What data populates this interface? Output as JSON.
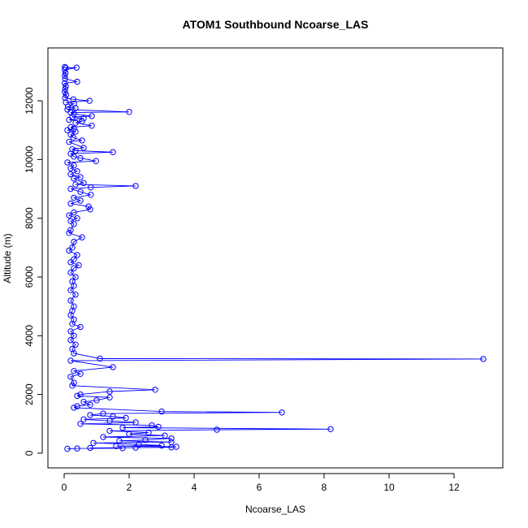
{
  "chart_data": {
    "type": "scatter",
    "title": "ATOM1 Southbound Ncoarse_LAS",
    "xlabel": "Ncoarse_LAS",
    "ylabel": "Altitude (m)",
    "xlim": [
      -0.5,
      13.5
    ],
    "ylim": [
      -500,
      13800
    ],
    "xticks": [
      0,
      2,
      4,
      6,
      8,
      10,
      12
    ],
    "yticks": [
      0,
      2000,
      4000,
      6000,
      8000,
      10000,
      12000
    ],
    "grid": false,
    "legend": "none",
    "style": "points connected by lines, open circles",
    "colors": {
      "series": "#0000ff",
      "axes": "#000000"
    },
    "series": [
      {
        "points": [
          [
            0.02,
            13150
          ],
          [
            0.05,
            13120
          ],
          [
            0.38,
            13130
          ],
          [
            0.02,
            13050
          ],
          [
            0.04,
            12950
          ],
          [
            0.02,
            12850
          ],
          [
            0.03,
            12750
          ],
          [
            0.4,
            12650
          ],
          [
            0.02,
            12600
          ],
          [
            0.05,
            12500
          ],
          [
            0.03,
            12400
          ],
          [
            0.02,
            12300
          ],
          [
            0.06,
            12200
          ],
          [
            0.03,
            12100
          ],
          [
            0.28,
            12050
          ],
          [
            0.78,
            12000
          ],
          [
            0.05,
            11950
          ],
          [
            0.3,
            11900
          ],
          [
            0.12,
            11800
          ],
          [
            0.35,
            11750
          ],
          [
            0.1,
            11700
          ],
          [
            2.0,
            11620
          ],
          [
            0.2,
            11600
          ],
          [
            0.3,
            11550
          ],
          [
            0.85,
            11480
          ],
          [
            0.25,
            11450
          ],
          [
            0.6,
            11400
          ],
          [
            0.15,
            11350
          ],
          [
            0.55,
            11300
          ],
          [
            0.35,
            11250
          ],
          [
            0.85,
            11150
          ],
          [
            0.2,
            11100
          ],
          [
            0.3,
            11050
          ],
          [
            0.1,
            11000
          ],
          [
            0.35,
            10950
          ],
          [
            0.2,
            10850
          ],
          [
            0.28,
            10750
          ],
          [
            0.55,
            10650
          ],
          [
            0.15,
            10600
          ],
          [
            0.6,
            10400
          ],
          [
            0.25,
            10350
          ],
          [
            0.35,
            10300
          ],
          [
            1.5,
            10250
          ],
          [
            0.2,
            10200
          ],
          [
            0.3,
            10100
          ],
          [
            0.5,
            10050
          ],
          [
            0.98,
            9950
          ],
          [
            0.1,
            9900
          ],
          [
            0.3,
            9800
          ],
          [
            0.2,
            9700
          ],
          [
            0.4,
            9600
          ],
          [
            0.2,
            9500
          ],
          [
            0.5,
            9400
          ],
          [
            0.3,
            9350
          ],
          [
            0.6,
            9200
          ],
          [
            0.35,
            9150
          ],
          [
            2.2,
            9100
          ],
          [
            0.82,
            9050
          ],
          [
            0.2,
            9000
          ],
          [
            0.5,
            8900
          ],
          [
            0.82,
            8800
          ],
          [
            0.3,
            8700
          ],
          [
            0.5,
            8600
          ],
          [
            0.2,
            8500
          ],
          [
            0.75,
            8400
          ],
          [
            0.8,
            8300
          ],
          [
            0.3,
            8200
          ],
          [
            0.15,
            8100
          ],
          [
            0.4,
            8000
          ],
          [
            0.2,
            7900
          ],
          [
            0.3,
            7800
          ],
          [
            0.2,
            7600
          ],
          [
            0.15,
            7500
          ],
          [
            0.55,
            7350
          ],
          [
            0.3,
            7200
          ],
          [
            0.25,
            7000
          ],
          [
            0.15,
            6900
          ],
          [
            0.4,
            6750
          ],
          [
            0.3,
            6600
          ],
          [
            0.2,
            6500
          ],
          [
            0.45,
            6400
          ],
          [
            0.3,
            6300
          ],
          [
            0.2,
            6150
          ],
          [
            0.35,
            6000
          ],
          [
            0.25,
            5850
          ],
          [
            0.3,
            5700
          ],
          [
            0.2,
            5550
          ],
          [
            0.35,
            5400
          ],
          [
            0.2,
            5200
          ],
          [
            0.3,
            5000
          ],
          [
            0.25,
            4850
          ],
          [
            0.2,
            4700
          ],
          [
            0.3,
            4550
          ],
          [
            0.25,
            4400
          ],
          [
            0.5,
            4300
          ],
          [
            0.2,
            4150
          ],
          [
            0.3,
            4000
          ],
          [
            0.2,
            3850
          ],
          [
            0.35,
            3700
          ],
          [
            0.25,
            3550
          ],
          [
            0.3,
            3400
          ],
          [
            1.1,
            3220
          ],
          [
            12.9,
            3210
          ],
          [
            0.2,
            3150
          ],
          [
            1.5,
            2930
          ],
          [
            0.3,
            2800
          ],
          [
            0.5,
            2700
          ],
          [
            0.2,
            2600
          ],
          [
            0.3,
            2400
          ],
          [
            0.25,
            2300
          ],
          [
            2.8,
            2160
          ],
          [
            1.4,
            2100
          ],
          [
            0.5,
            2000
          ],
          [
            0.4,
            1950
          ],
          [
            1.4,
            1900
          ],
          [
            1.0,
            1800
          ],
          [
            0.6,
            1750
          ],
          [
            0.8,
            1650
          ],
          [
            0.4,
            1600
          ],
          [
            0.3,
            1550
          ],
          [
            3.0,
            1420
          ],
          [
            6.7,
            1390
          ],
          [
            1.2,
            1350
          ],
          [
            0.8,
            1300
          ],
          [
            1.5,
            1250
          ],
          [
            1.9,
            1200
          ],
          [
            0.6,
            1150
          ],
          [
            1.4,
            1100
          ],
          [
            2.2,
            1050
          ],
          [
            0.5,
            1000
          ],
          [
            2.7,
            950
          ],
          [
            2.9,
            900
          ],
          [
            1.8,
            870
          ],
          [
            8.2,
            820
          ],
          [
            4.7,
            800
          ],
          [
            1.4,
            760
          ],
          [
            2.6,
            700
          ],
          [
            2.0,
            650
          ],
          [
            3.1,
            600
          ],
          [
            1.2,
            550
          ],
          [
            3.3,
            500
          ],
          [
            2.5,
            450
          ],
          [
            1.7,
            420
          ],
          [
            3.3,
            380
          ],
          [
            0.9,
            350
          ],
          [
            2.3,
            300
          ],
          [
            3.0,
            260
          ],
          [
            1.6,
            240
          ],
          [
            3.45,
            220
          ],
          [
            3.3,
            200
          ],
          [
            2.2,
            190
          ],
          [
            0.8,
            180
          ],
          [
            1.8,
            170
          ],
          [
            0.4,
            160
          ],
          [
            0.1,
            150
          ]
        ]
      }
    ]
  }
}
